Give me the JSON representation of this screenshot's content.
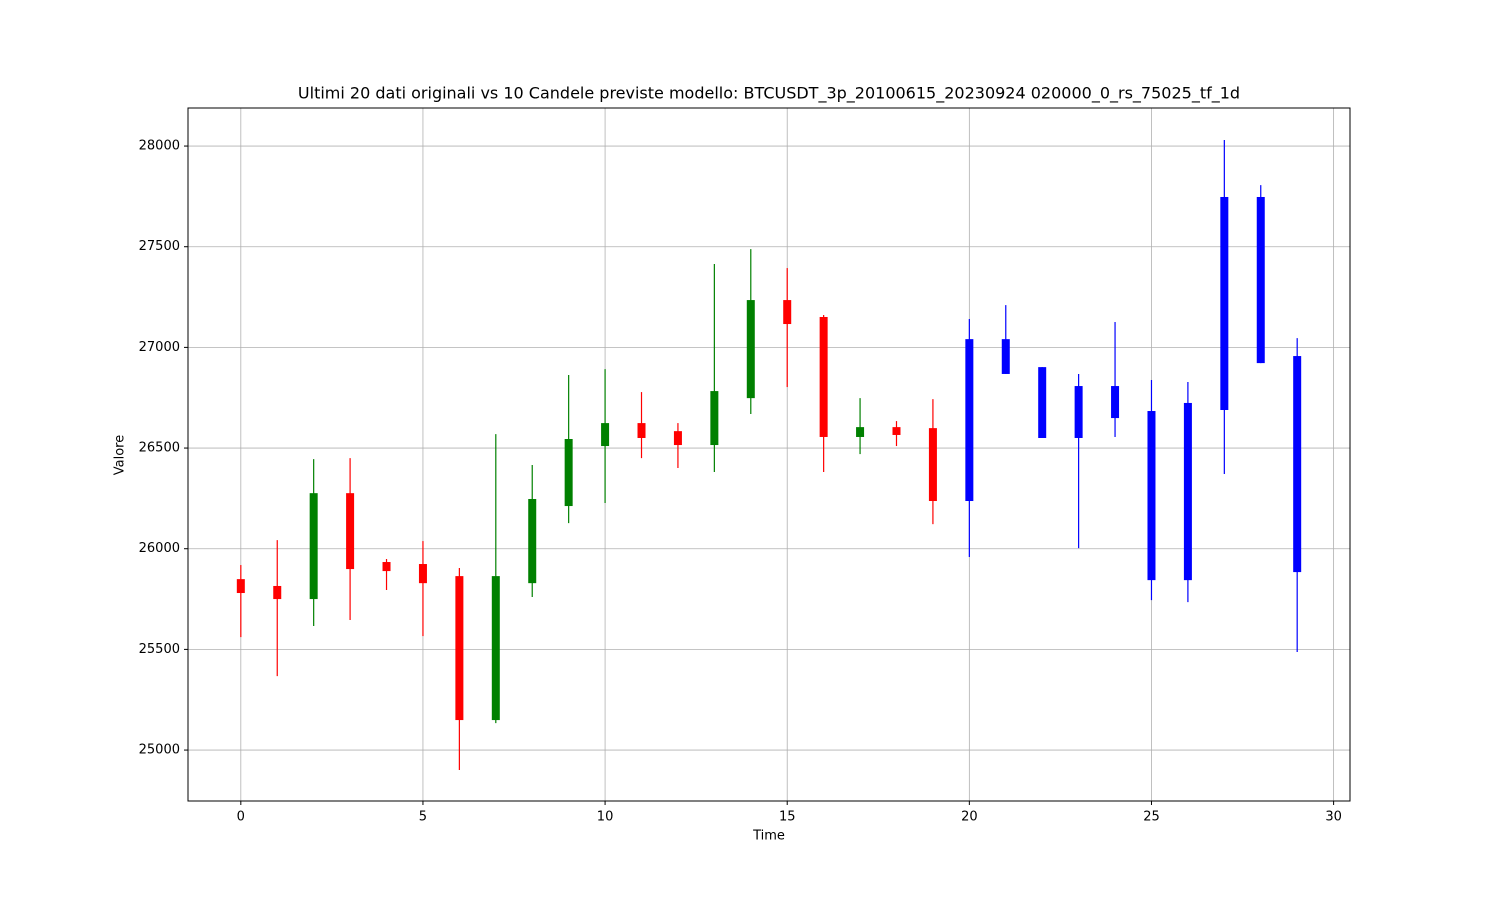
{
  "chart_data": {
    "type": "candlestick",
    "title": "Ultimi 20 dati originali vs 10 Candele previste modello: BTCUSDT_3p_20100615_20230924 020000_0_rs_75025_tf_1d",
    "x_label": "Time",
    "y_label": "Valore",
    "x": [
      0,
      1,
      2,
      3,
      4,
      5,
      6,
      7,
      8,
      9,
      10,
      11,
      12,
      13,
      14,
      15,
      16,
      17,
      18,
      19,
      20,
      21,
      22,
      23,
      24,
      25,
      26,
      27,
      28,
      29
    ],
    "open": [
      25849,
      25815,
      25750,
      26276,
      25934,
      25924,
      25864,
      25149,
      25829,
      26212,
      26510,
      26624,
      26584,
      26515,
      26748,
      27235,
      27151,
      26555,
      26604,
      26599,
      26237,
      26868,
      26550,
      26550,
      26649,
      25844,
      25844,
      26689,
      26922,
      25884
    ],
    "high": [
      25919,
      26043,
      26445,
      26450,
      25949,
      26038,
      25904,
      26569,
      26416,
      26863,
      26892,
      26778,
      26624,
      27414,
      27488,
      27394,
      27161,
      26748,
      26634,
      26743,
      27141,
      27210,
      26902,
      26868,
      27126,
      26838,
      26828,
      28030,
      27806,
      27046
    ],
    "low": [
      25561,
      25367,
      25616,
      25646,
      25795,
      25566,
      24901,
      25134,
      25760,
      26127,
      26227,
      26450,
      26401,
      26381,
      26669,
      26803,
      26381,
      26470,
      26510,
      26122,
      25959,
      26868,
      26550,
      26003,
      26555,
      25745,
      25735,
      26371,
      26922,
      25487
    ],
    "close": [
      25780,
      25750,
      26276,
      25899,
      25889,
      25829,
      25149,
      25864,
      26247,
      26545,
      26624,
      26550,
      26515,
      26783,
      27235,
      27116,
      26555,
      26604,
      26565,
      26237,
      27041,
      27041,
      26902,
      26808,
      26808,
      26684,
      26724,
      27747,
      27747,
      26957
    ],
    "colors": [
      "red",
      "red",
      "green",
      "red",
      "red",
      "red",
      "red",
      "green",
      "green",
      "green",
      "green",
      "red",
      "red",
      "green",
      "green",
      "red",
      "red",
      "green",
      "red",
      "red",
      "blue",
      "blue",
      "blue",
      "blue",
      "blue",
      "blue",
      "blue",
      "blue",
      "blue",
      "blue"
    ],
    "xlim": [
      -1.45,
      30.45
    ],
    "ylim": [
      24747,
      28189
    ],
    "xticks": [
      0,
      5,
      10,
      15,
      20,
      25,
      30
    ],
    "yticks": [
      25000,
      25500,
      26000,
      26500,
      27000,
      27500,
      28000
    ],
    "grid": true
  }
}
